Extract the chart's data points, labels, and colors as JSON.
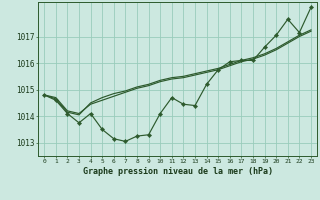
{
  "title": "Graphe pression niveau de la mer (hPa)",
  "background_color": "#cce8e0",
  "grid_color": "#99ccbb",
  "line_color": "#2d5a2d",
  "xlim": [
    -0.5,
    23.5
  ],
  "ylim": [
    1012.5,
    1018.3
  ],
  "yticks": [
    1013,
    1014,
    1015,
    1016,
    1017
  ],
  "xticks": [
    0,
    1,
    2,
    3,
    4,
    5,
    6,
    7,
    8,
    9,
    10,
    11,
    12,
    13,
    14,
    15,
    16,
    17,
    18,
    19,
    20,
    21,
    22,
    23
  ],
  "series_markers": [
    1014.8,
    1014.6,
    1014.1,
    1013.75,
    1014.1,
    1013.5,
    1013.15,
    1013.05,
    1013.25,
    1013.3,
    1014.1,
    1014.7,
    1014.45,
    1014.4,
    1015.2,
    1015.75,
    1016.05,
    1016.1,
    1016.1,
    1016.6,
    1017.05,
    1017.65,
    1017.15,
    1018.1
  ],
  "series_line1": [
    1014.8,
    1014.65,
    1014.15,
    1014.05,
    1014.5,
    1014.7,
    1014.85,
    1014.95,
    1015.1,
    1015.2,
    1015.35,
    1015.45,
    1015.5,
    1015.6,
    1015.7,
    1015.8,
    1015.95,
    1016.1,
    1016.2,
    1016.35,
    1016.55,
    1016.8,
    1017.05,
    1017.25
  ],
  "series_line2": [
    1014.8,
    1014.7,
    1014.2,
    1014.1,
    1014.45,
    1014.6,
    1014.75,
    1014.9,
    1015.05,
    1015.15,
    1015.3,
    1015.4,
    1015.45,
    1015.55,
    1015.65,
    1015.75,
    1015.9,
    1016.05,
    1016.15,
    1016.3,
    1016.5,
    1016.75,
    1017.0,
    1017.2
  ]
}
